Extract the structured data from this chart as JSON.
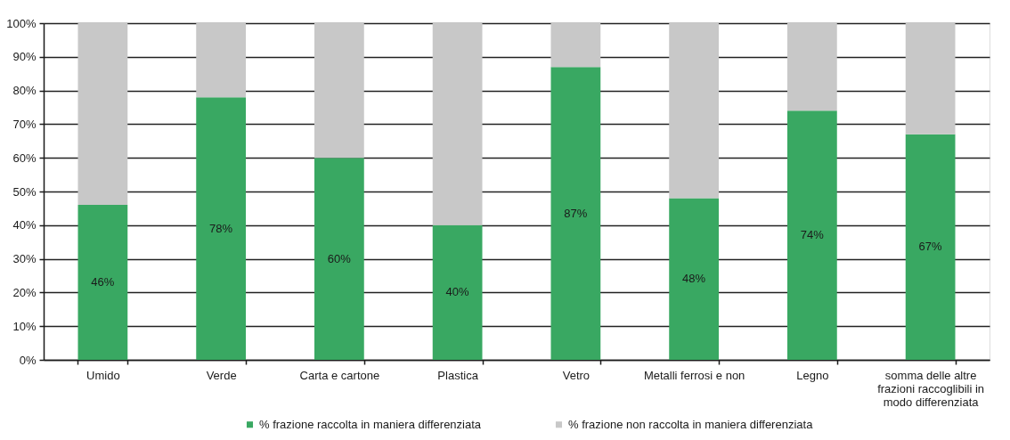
{
  "chart_data": {
    "type": "bar",
    "stacked": true,
    "categories": [
      "Umido",
      "Verde",
      "Carta e cartone",
      "Plastica",
      "Vetro",
      "Metalli ferrosi e non",
      "Legno",
      "somma delle altre frazioni raccoglibili in modo differenziata"
    ],
    "series": [
      {
        "name": "% frazione raccolta in maniera differenziata",
        "color": "#39a862",
        "values": [
          46,
          78,
          60,
          40,
          87,
          48,
          74,
          67
        ],
        "value_labels": [
          "46%",
          "78%",
          "60%",
          "40%",
          "87%",
          "48%",
          "74%",
          "67%"
        ]
      },
      {
        "name": "% frazione non raccolta in maniera differenziata",
        "color": "#c8c8c8",
        "values": [
          54,
          22,
          40,
          60,
          13,
          52,
          26,
          33
        ]
      }
    ],
    "ylim": [
      0,
      100
    ],
    "yticks": [
      {
        "value": 0,
        "label": "0%"
      },
      {
        "value": 10,
        "label": "10%"
      },
      {
        "value": 20,
        "label": "20%"
      },
      {
        "value": 30,
        "label": "30%"
      },
      {
        "value": 40,
        "label": "40%"
      },
      {
        "value": 50,
        "label": "50%"
      },
      {
        "value": 60,
        "label": "60%"
      },
      {
        "value": 70,
        "label": "70%"
      },
      {
        "value": 80,
        "label": "80%"
      },
      {
        "value": 90,
        "label": "90%"
      },
      {
        "value": 100,
        "label": "100%"
      }
    ],
    "grid": "y",
    "legend": "bottom"
  }
}
